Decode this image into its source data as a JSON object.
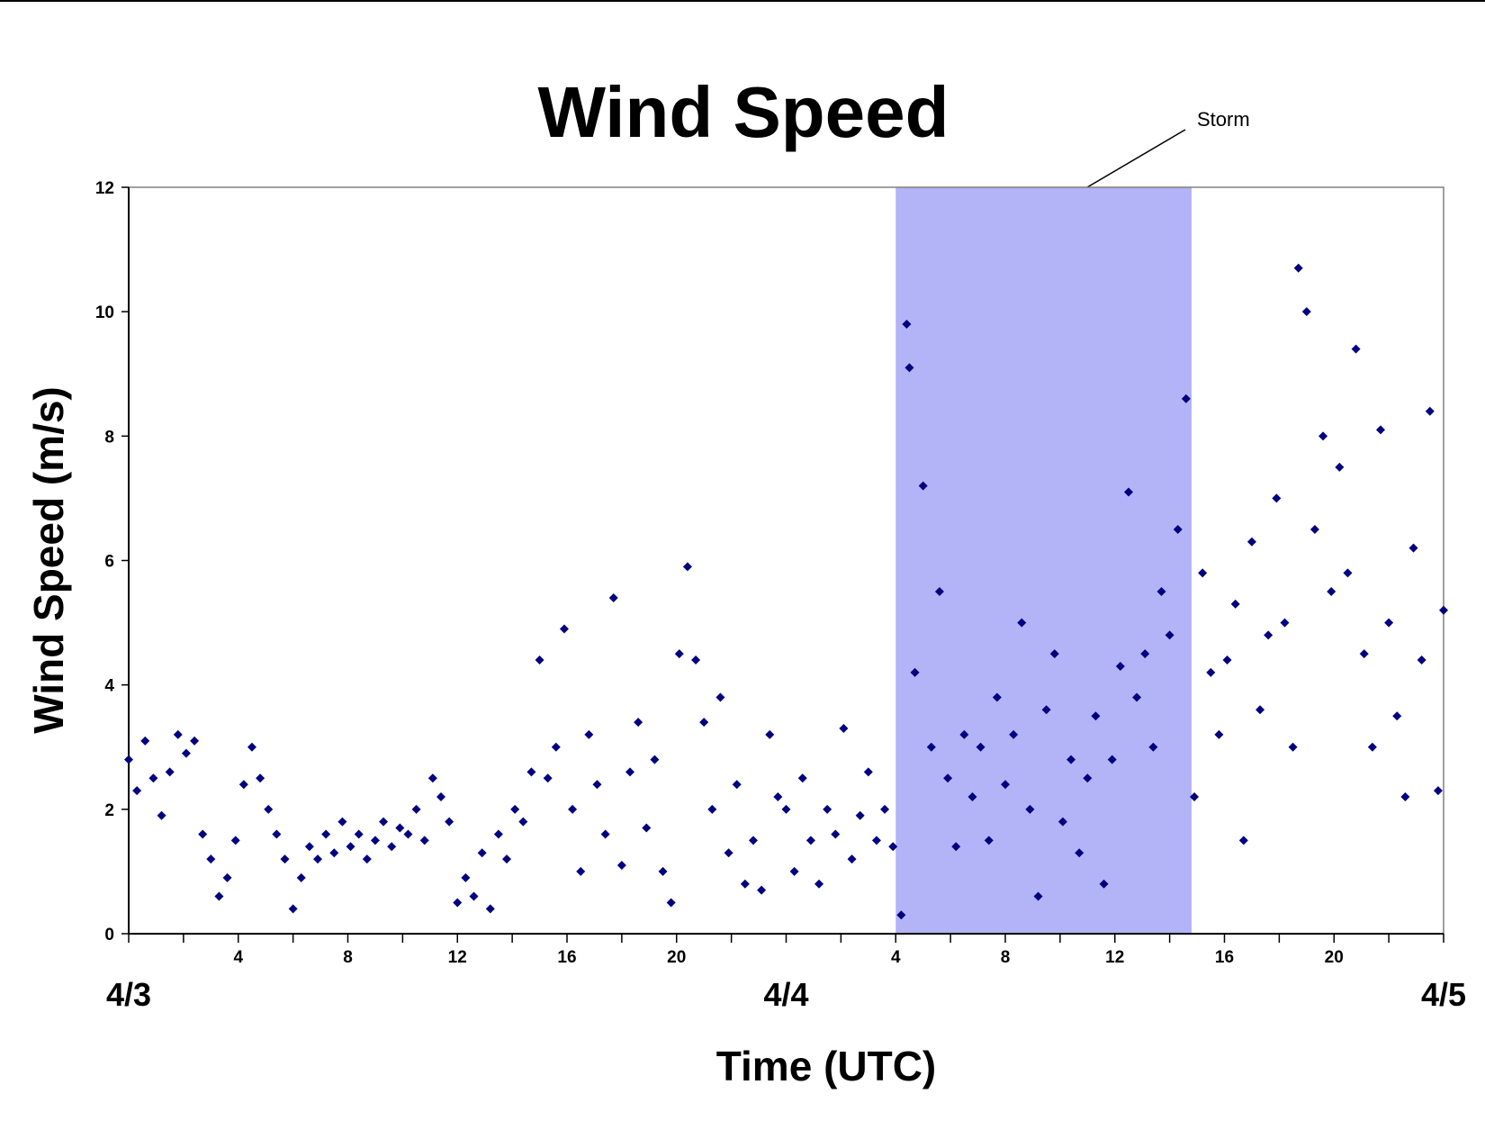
{
  "chart_data": {
    "type": "scatter",
    "title": "Wind Speed",
    "x_label": "Time (UTC)",
    "y_label": "Wind Speed (m/s)",
    "color": "#000080",
    "xlim": [
      0,
      48
    ],
    "ylim": [
      0,
      12
    ],
    "yticks": [
      0,
      2,
      4,
      6,
      8,
      10,
      12
    ],
    "xticks": [
      4,
      8,
      12,
      16,
      20,
      {
        "value": 28,
        "label": "4"
      },
      {
        "value": 32,
        "label": "8"
      },
      {
        "value": 36,
        "label": "12"
      },
      {
        "value": 40,
        "label": "16"
      },
      {
        "value": 44,
        "label": "20"
      }
    ],
    "xminor_ticks": [
      0,
      2,
      6,
      10,
      14,
      18,
      22,
      24,
      26,
      30,
      34,
      38,
      42,
      46,
      48
    ],
    "xday_labels": [
      {
        "value": 0,
        "label": "4/3"
      },
      {
        "value": 24,
        "label": "4/4"
      },
      {
        "value": 48,
        "label": "4/5"
      }
    ],
    "storm": {
      "label": "Storm",
      "start": 28,
      "end": 38.8,
      "color": "#b3b3f8"
    },
    "x": [
      0,
      0.3,
      0.6,
      0.9,
      1.2,
      1.5,
      1.8,
      2.1,
      2.4,
      2.7,
      3.0,
      3.3,
      3.6,
      3.9,
      4.2,
      4.5,
      4.8,
      5.1,
      5.4,
      5.7,
      6.0,
      6.3,
      6.6,
      6.9,
      7.2,
      7.5,
      7.8,
      8.1,
      8.4,
      8.7,
      9.0,
      9.3,
      9.6,
      9.9,
      10.2,
      10.5,
      10.8,
      11.1,
      11.4,
      11.7,
      12.0,
      12.3,
      12.6,
      12.9,
      13.2,
      13.5,
      13.8,
      14.1,
      14.4,
      14.7,
      15.0,
      15.3,
      15.6,
      15.9,
      16.2,
      16.5,
      16.8,
      17.1,
      17.4,
      17.7,
      18.0,
      18.3,
      18.6,
      18.9,
      19.2,
      19.5,
      19.8,
      20.1,
      20.4,
      20.7,
      21.0,
      21.3,
      21.6,
      21.9,
      22.2,
      22.5,
      22.8,
      23.1,
      23.4,
      23.7,
      24.0,
      24.3,
      24.6,
      24.9,
      25.2,
      25.5,
      25.8,
      26.1,
      26.4,
      26.7,
      27.0,
      27.3,
      27.6,
      27.9,
      28.2,
      28.4,
      28.5,
      28.7,
      29.0,
      29.3,
      29.6,
      29.9,
      30.2,
      30.5,
      30.8,
      31.1,
      31.4,
      31.7,
      32.0,
      32.3,
      32.6,
      32.9,
      33.2,
      33.5,
      33.8,
      34.1,
      34.4,
      34.7,
      35.0,
      35.3,
      35.6,
      35.9,
      36.2,
      36.5,
      36.8,
      37.1,
      37.4,
      37.7,
      38.0,
      38.3,
      38.6,
      38.9,
      39.2,
      39.5,
      39.8,
      40.1,
      40.4,
      40.7,
      41.0,
      41.3,
      41.6,
      41.9,
      42.2,
      42.5,
      42.7,
      43.0,
      43.3,
      43.6,
      43.9,
      44.2,
      44.5,
      44.8,
      45.1,
      45.4,
      45.7,
      46.0,
      46.3,
      46.6,
      46.9,
      47.2,
      47.5,
      47.8,
      48.0
    ],
    "values": [
      2.8,
      2.3,
      3.1,
      2.5,
      1.9,
      2.6,
      3.2,
      2.9,
      3.1,
      1.6,
      1.2,
      0.6,
      0.9,
      1.5,
      2.4,
      3.0,
      2.5,
      2.0,
      1.6,
      1.2,
      0.4,
      0.9,
      1.4,
      1.2,
      1.6,
      1.3,
      1.8,
      1.4,
      1.6,
      1.2,
      1.5,
      1.8,
      1.4,
      1.7,
      1.6,
      2.0,
      1.5,
      2.5,
      2.2,
      1.8,
      0.5,
      0.9,
      0.6,
      1.3,
      0.4,
      1.6,
      1.2,
      2.0,
      1.8,
      2.6,
      4.4,
      2.5,
      3.0,
      4.9,
      2.0,
      1.0,
      3.2,
      2.4,
      1.6,
      5.4,
      1.1,
      2.6,
      3.4,
      1.7,
      2.8,
      1.0,
      0.5,
      4.5,
      5.9,
      4.4,
      3.4,
      2.0,
      3.8,
      1.3,
      2.4,
      0.8,
      1.5,
      0.7,
      3.2,
      2.2,
      2.0,
      1.0,
      2.5,
      1.5,
      0.8,
      2.0,
      1.6,
      3.3,
      1.2,
      1.9,
      2.6,
      1.5,
      2.0,
      1.4,
      0.3,
      9.8,
      9.1,
      4.2,
      7.2,
      3.0,
      5.5,
      2.5,
      1.4,
      3.2,
      2.2,
      3.0,
      1.5,
      3.8,
      2.4,
      3.2,
      5.0,
      2.0,
      0.6,
      3.6,
      4.5,
      1.8,
      2.8,
      1.3,
      2.5,
      3.5,
      0.8,
      2.8,
      4.3,
      7.1,
      3.8,
      4.5,
      3.0,
      5.5,
      4.8,
      6.5,
      8.6,
      2.2,
      5.8,
      4.2,
      3.2,
      4.4,
      5.3,
      1.5,
      6.3,
      3.6,
      4.8,
      7.0,
      5.0,
      3.0,
      10.7,
      10.0,
      6.5,
      8.0,
      5.5,
      7.5,
      5.8,
      9.4,
      4.5,
      3.0,
      8.1,
      5.0,
      3.5,
      2.2,
      6.2,
      4.4,
      8.4,
      2.3,
      5.2
    ]
  }
}
